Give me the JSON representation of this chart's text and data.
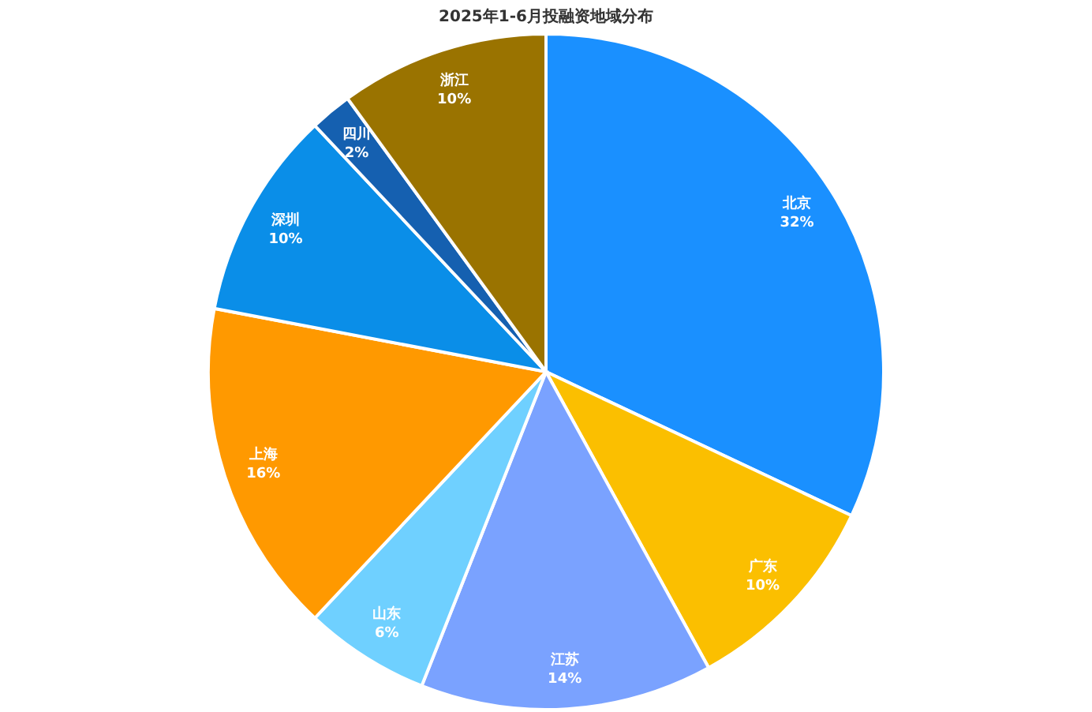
{
  "chart_data": {
    "type": "pie",
    "title": "2025年1-6月投融资地域分布",
    "categories": [
      "北京",
      "广东",
      "江苏",
      "山东",
      "上海",
      "深圳",
      "四川",
      "浙江"
    ],
    "values": [
      32,
      10,
      14,
      6,
      16,
      10,
      2,
      10
    ],
    "value_labels": [
      "32%",
      "10%",
      "14%",
      "6%",
      "16%",
      "10%",
      "2%",
      "10%"
    ],
    "colors": [
      "#1a90ff",
      "#fbbf00",
      "#7aa2ff",
      "#6fd0ff",
      "#ff9900",
      "#0a8ee8",
      "#1560b0",
      "#9a7300"
    ],
    "legend": false
  }
}
